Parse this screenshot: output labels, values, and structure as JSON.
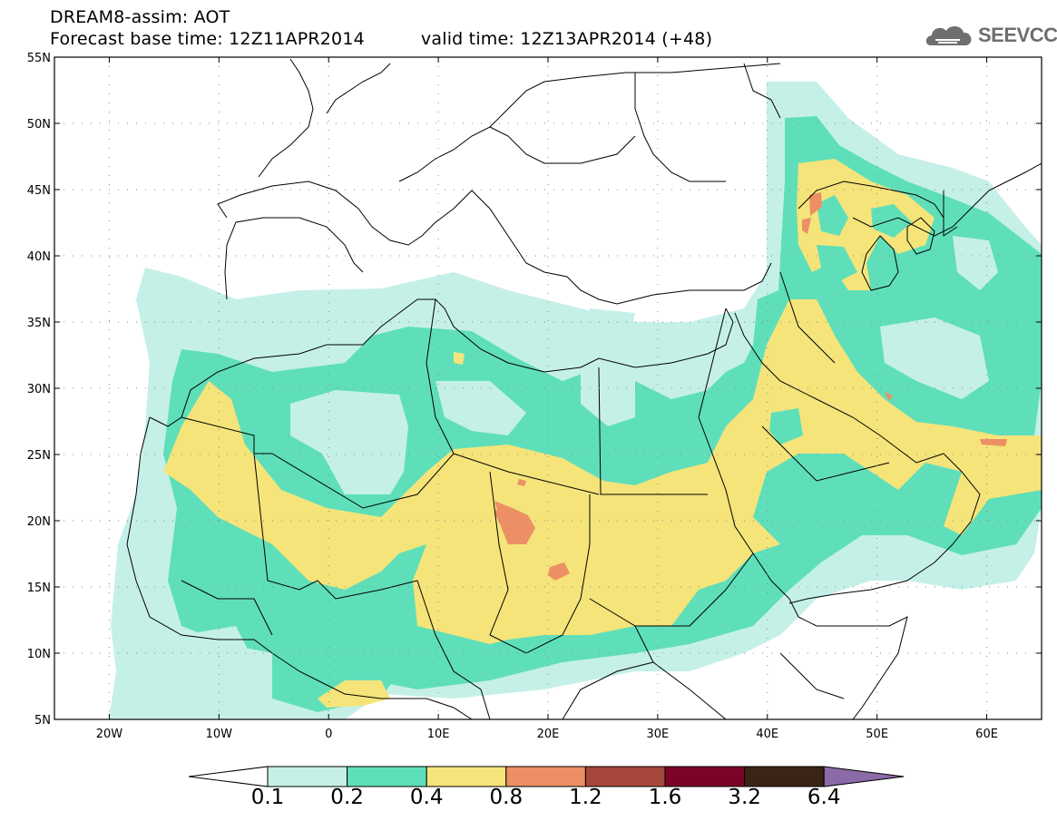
{
  "header": {
    "title": "DREAM8-assim: AOT",
    "base_time": "Forecast base time: 12Z11APR2014",
    "valid_time": "valid time: 12Z13APR2014 (+48)"
  },
  "logo": {
    "text": "SEEVCCC"
  },
  "map": {
    "lat_labels": [
      "55N",
      "50N",
      "45N",
      "40N",
      "35N",
      "30N",
      "25N",
      "20N",
      "15N",
      "10N",
      "5N"
    ],
    "lon_labels": [
      "20W",
      "10W",
      "0",
      "10E",
      "20E",
      "30E",
      "40E",
      "50E",
      "60E"
    ]
  },
  "colorbar": {
    "colors": {
      "under": "#ffffff",
      "c1": "#c5f0e8",
      "c2": "#5fdfb9",
      "c3": "#f5e47a",
      "c4": "#ec8f65",
      "c5": "#a6473b",
      "c6": "#7d0326",
      "c7": "#3a2415",
      "over": "#8b6aa8"
    },
    "labels": [
      "0.1",
      "0.2",
      "0.4",
      "0.8",
      "1.2",
      "1.6",
      "3.2",
      "6.4"
    ]
  }
}
